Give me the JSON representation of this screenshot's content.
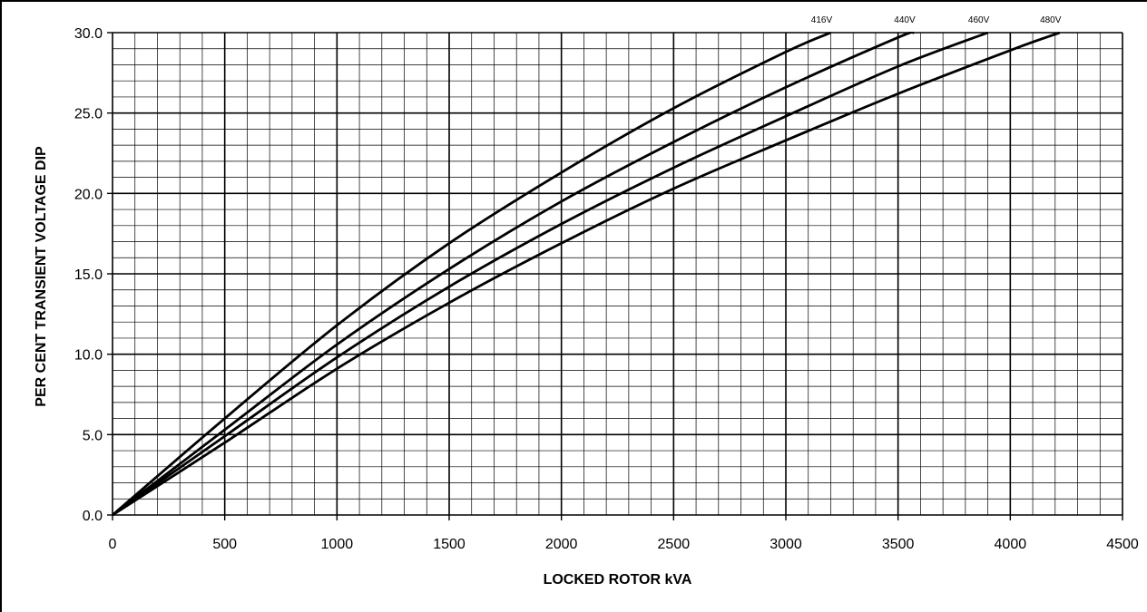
{
  "chart_data": {
    "type": "line",
    "title": "",
    "xlabel": "LOCKED ROTOR kVA",
    "ylabel": "PER CENT TRANSIENT VOLTAGE DIP",
    "xlim": [
      0,
      4500
    ],
    "ylim": [
      0,
      30
    ],
    "x_ticks": [
      "0",
      "500",
      "1000",
      "1500",
      "2000",
      "2500",
      "3000",
      "3500",
      "4000",
      "4500"
    ],
    "y_ticks": [
      "0.0",
      "5.0",
      "10.0",
      "15.0",
      "20.0",
      "25.0",
      "30.0"
    ],
    "grid": true,
    "legend": "curve labels at top-right ends",
    "series": [
      {
        "name": "416V",
        "x": [
          0,
          500,
          1000,
          1500,
          2000,
          2500,
          3000,
          3200
        ],
        "y": [
          0,
          6.0,
          11.8,
          16.9,
          21.3,
          25.3,
          28.8,
          30.0
        ]
      },
      {
        "name": "440V",
        "x": [
          0,
          500,
          1000,
          1500,
          2000,
          2500,
          3000,
          3500,
          3570
        ],
        "y": [
          0,
          5.3,
          10.6,
          15.3,
          19.5,
          23.2,
          26.6,
          29.7,
          30.0
        ]
      },
      {
        "name": "460V",
        "x": [
          0,
          500,
          1000,
          1500,
          2000,
          2500,
          3000,
          3500,
          3900
        ],
        "y": [
          0,
          4.9,
          9.8,
          14.2,
          18.1,
          21.6,
          24.8,
          27.9,
          30.0
        ]
      },
      {
        "name": "480V",
        "x": [
          0,
          500,
          1000,
          1500,
          2000,
          2500,
          3000,
          3500,
          4000,
          4220
        ],
        "y": [
          0,
          4.5,
          9.1,
          13.2,
          16.9,
          20.3,
          23.3,
          26.2,
          28.9,
          30.0
        ]
      }
    ]
  }
}
